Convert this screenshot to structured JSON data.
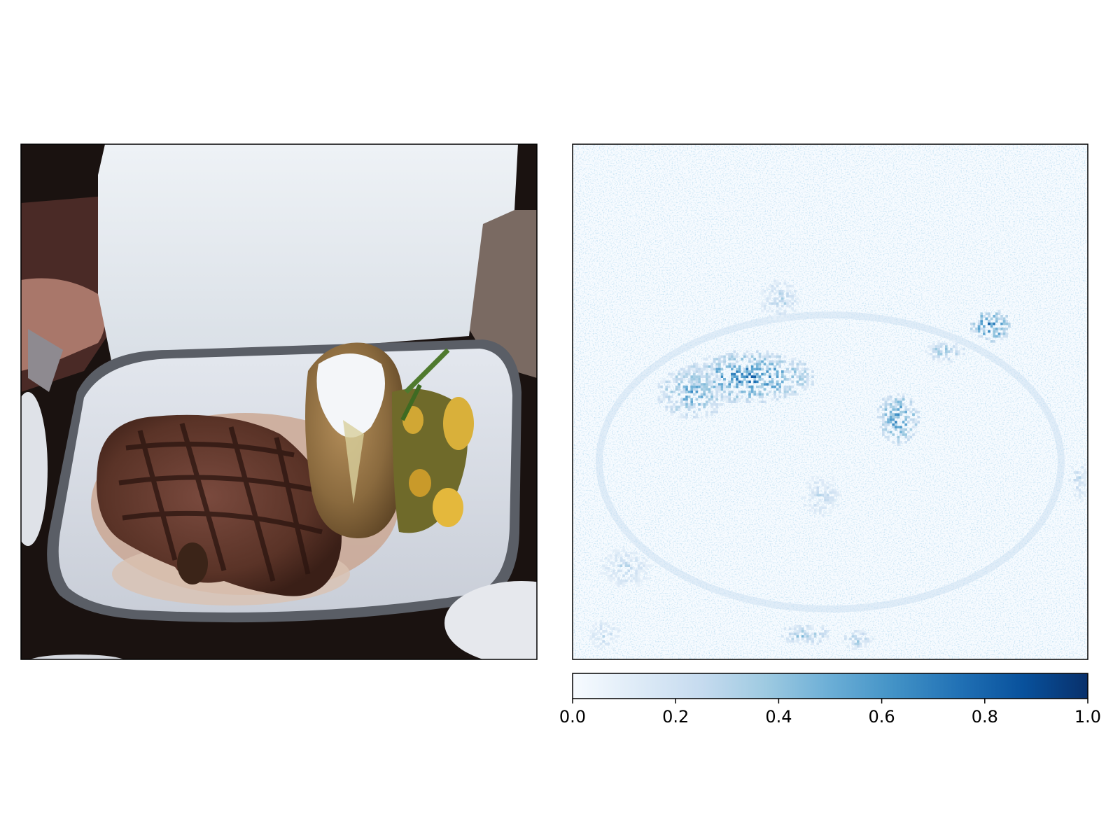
{
  "figure": {
    "panels": [
      "photo",
      "attribution-heatmap"
    ],
    "photo_subject": "grilled steak with baked potato topped with sour cream and sauteed zucchini and squash on a white plate held in front of a white t-shirt"
  },
  "chart_data": {
    "type": "heatmap",
    "title": "",
    "xlabel": "",
    "ylabel": "",
    "colormap": "Blues",
    "colors": {
      "low": "#f7fbff",
      "mid": "#6baed6",
      "high": "#08306b"
    },
    "colorbar": {
      "orientation": "horizontal",
      "placement": "below-heatmap",
      "range": [
        0.0,
        1.0
      ],
      "ticks": [
        0.0,
        0.2,
        0.4,
        0.6,
        0.8,
        1.0
      ],
      "tick_labels": [
        "0.0",
        "0.2",
        "0.4",
        "0.6",
        "0.8",
        "1.0"
      ]
    },
    "grid": false,
    "axes_ticks_shown": false,
    "hotspots": [
      {
        "region": "steak upper band",
        "cx": 0.34,
        "cy": 0.45,
        "rx": 0.13,
        "ry": 0.05,
        "value": 0.75
      },
      {
        "region": "steak left edge",
        "cx": 0.23,
        "cy": 0.48,
        "rx": 0.07,
        "ry": 0.05,
        "value": 0.6
      },
      {
        "region": "potato tip",
        "cx": 0.63,
        "cy": 0.53,
        "rx": 0.04,
        "ry": 0.05,
        "value": 0.7
      },
      {
        "region": "zucchini top",
        "cx": 0.81,
        "cy": 0.35,
        "rx": 0.04,
        "ry": 0.03,
        "value": 0.8
      },
      {
        "region": "potato cream",
        "cx": 0.72,
        "cy": 0.4,
        "rx": 0.04,
        "ry": 0.02,
        "value": 0.45
      },
      {
        "region": "plate bottom",
        "cx": 0.45,
        "cy": 0.95,
        "rx": 0.05,
        "ry": 0.02,
        "value": 0.45
      },
      {
        "region": "plate bottom right",
        "cx": 0.55,
        "cy": 0.96,
        "rx": 0.03,
        "ry": 0.02,
        "value": 0.4
      },
      {
        "region": "upper steak",
        "cx": 0.4,
        "cy": 0.3,
        "rx": 0.04,
        "ry": 0.04,
        "value": 0.35
      },
      {
        "region": "left plate rim",
        "cx": 0.1,
        "cy": 0.82,
        "rx": 0.05,
        "ry": 0.04,
        "value": 0.3
      },
      {
        "region": "center",
        "cx": 0.48,
        "cy": 0.68,
        "rx": 0.04,
        "ry": 0.04,
        "value": 0.3
      },
      {
        "region": "lower-left",
        "cx": 0.06,
        "cy": 0.95,
        "rx": 0.03,
        "ry": 0.03,
        "value": 0.3
      },
      {
        "region": "right edge",
        "cx": 0.98,
        "cy": 0.65,
        "rx": 0.02,
        "ry": 0.04,
        "value": 0.3
      }
    ]
  }
}
